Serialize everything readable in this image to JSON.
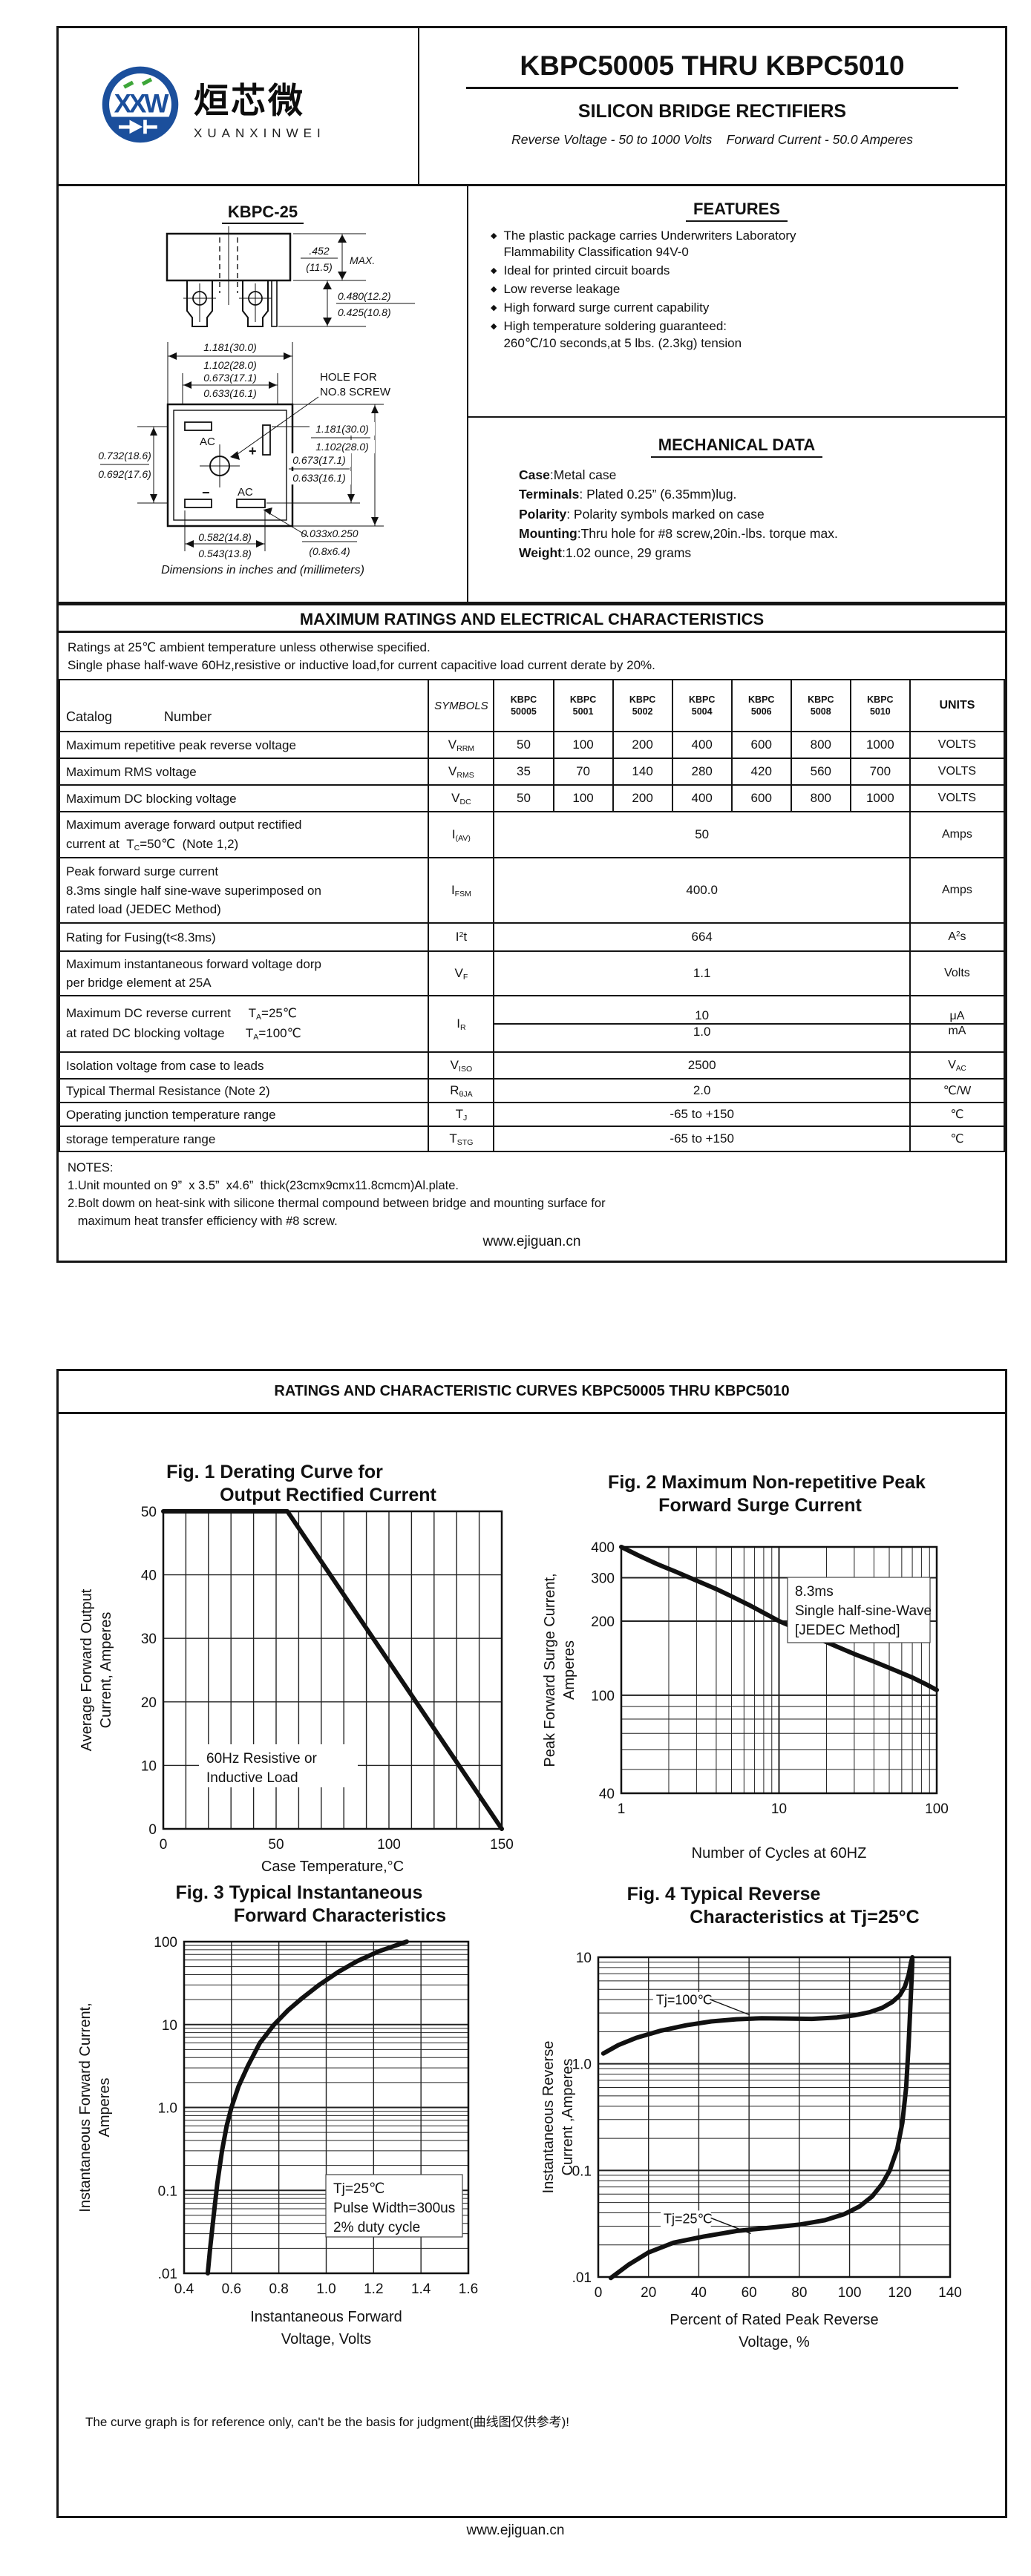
{
  "p1": {
    "logo": {
      "cn": "烜芯微",
      "en": "XUANXINWEI",
      "monogram": "XXW",
      "blue": "#1b4f9c",
      "green": "#3da639"
    },
    "title": "KBPC50005 THRU KBPC5010",
    "subtitle": "SILICON BRIDGE RECTIFIERS",
    "tagline": "Reverse Voltage - 50 to 1000 Volts    Forward Current - 50.0 Amperes",
    "pkg": {
      "name": "KBPC-25",
      "caption": "Dimensions in inches and (millimeters)",
      "dims": {
        "h1": ".452",
        "h2": "(11.5)",
        "hmax": "MAX.",
        "l1": "0.480(12.2)",
        "l2": "0.425(10.8)",
        "w1": "1.181(30.0)",
        "w2": "1.102(28.0)",
        "wi1": "0.673(17.1)",
        "wi2": "0.633(16.1)",
        "hole1": "HOLE FOR",
        "hole2": "NO.8 SCREW",
        "lv1": "0.732(18.6)",
        "lv2": "0.692(17.6)",
        "rv1": "1.181(30.0)",
        "rv2": "1.102(28.0)",
        "rv3": "0.673(17.1)",
        "rv4": "0.633(16.1)",
        "b1": "0.582(14.8)",
        "b2": "0.543(13.8)",
        "s1": "0.033x0.250",
        "s2": "(0.8x6.4)",
        "ac": "AC",
        "plus": "+",
        "minus": "−"
      }
    },
    "features": {
      "heading": "FEATURES",
      "items": [
        [
          "The plastic package carries Underwriters Laboratory",
          "Flammability Classification 94V-0"
        ],
        [
          "Ideal for printed circuit boards"
        ],
        [
          "Low reverse leakage"
        ],
        [
          "High forward surge current capability"
        ],
        [
          "High temperature soldering guaranteed:",
          "260℃/10 seconds,at 5 lbs. (2.3kg) tension"
        ]
      ]
    },
    "mech": {
      "heading": "MECHANICAL DATA",
      "rows": [
        {
          "b": "Case",
          "t": ":Metal case"
        },
        {
          "b": "Terminals",
          "t": ": Plated 0.25”  (6.35mm)lug."
        },
        {
          "b": "Polarity",
          "t": ": Polarity symbols marked on case"
        },
        {
          "b": "Mounting",
          "t": ":Thru hole for #8 screw,20in.-lbs. torque max."
        },
        {
          "b": "Weight",
          "t": ":1.02 ounce, 29 grams"
        }
      ]
    },
    "ratings": {
      "heading": "MAXIMUM RATINGS AND ELECTRICAL CHARACTERISTICS",
      "note1": "Ratings at 25℃ ambient temperature unless otherwise specified.",
      "note2": "Single phase half-wave 60Hz,resistive or inductive load,for current capacitive load current derate by 20%.",
      "table": {
        "catalog_label": "Catalog",
        "number_label": "Number",
        "symbols_label": "SYMBOLS",
        "units_label": "UNITS",
        "parts": [
          [
            "KBPC",
            "50005"
          ],
          [
            "KBPC",
            "5001"
          ],
          [
            "KBPC",
            "5002"
          ],
          [
            "KBPC",
            "5004"
          ],
          [
            "KBPC",
            "5006"
          ],
          [
            "KBPC",
            "5008"
          ],
          [
            "KBPC",
            "5010"
          ]
        ],
        "rows": [
          {
            "label": [
              "Maximum repetitive peak reverse voltage"
            ],
            "sym": "V_{RRM}",
            "values": [
              "50",
              "100",
              "200",
              "400",
              "600",
              "800",
              "1000"
            ],
            "units": "VOLTS"
          },
          {
            "label": [
              "Maximum RMS voltage"
            ],
            "sym": "V_{RMS}",
            "values": [
              "35",
              "70",
              "140",
              "280",
              "420",
              "560",
              "700"
            ],
            "units": "VOLTS"
          },
          {
            "label": [
              "Maximum DC blocking voltage"
            ],
            "sym": "V_{DC}",
            "values": [
              "50",
              "100",
              "200",
              "400",
              "600",
              "800",
              "1000"
            ],
            "units": "VOLTS"
          },
          {
            "label": [
              "Maximum average forward output rectified",
              "current at  T_{C}=50℃  (Note 1,2)"
            ],
            "sym": "I_{(AV)}",
            "span": "50",
            "units": "Amps"
          },
          {
            "label": [
              "Peak forward surge current",
              "8.3ms single half sine-wave superimposed on",
              "rated load (JEDEC Method)"
            ],
            "sym": "I_{FSM}",
            "span": "400.0",
            "units": "Amps"
          },
          {
            "label": [
              "Rating for Fusing(t<8.3ms)"
            ],
            "sym": "I^{2}t",
            "span": "664",
            "units": "A^{2}s"
          },
          {
            "label": [
              "Maximum instantaneous forward voltage dorp",
              "per bridge element at 25A"
            ],
            "sym": "V_{F}",
            "span": "1.1",
            "units": "Volts"
          },
          {
            "label": [
              "Maximum DC reverse current     T_{A}=25℃",
              "at rated DC blocking voltage      T_{A}=100℃"
            ],
            "sym": "I_{R}",
            "split": [
              "10",
              "1.0"
            ],
            "units_split": [
              "μA",
              "mA"
            ]
          },
          {
            "label": [
              "Isolation voltage from case to leads"
            ],
            "sym": "V_{ISO}",
            "span": "2500",
            "units": "V_{AC}"
          },
          {
            "label": [
              "Typical Thermal Resistance (Note 2)"
            ],
            "sym": "R_{θJA}",
            "span": "2.0",
            "units": "℃/W"
          },
          {
            "label": [
              "Operating junction temperature range"
            ],
            "sym": "T_{J}",
            "span": "-65 to +150",
            "units": "℃"
          },
          {
            "label": [
              "storage temperature range"
            ],
            "sym": "T_{STG}",
            "span": "-65 to +150",
            "units": "℃"
          }
        ]
      },
      "notes": [
        "NOTES:",
        "1.Unit mounted on 9”  x 3.5”  x4.6”  thick(23cmx9cmx11.8cmcm)Al.plate.",
        "2.Bolt dowm on heat-sink with silicone thermal compound between bridge and mounting surface for",
        "   maximum heat transfer efficiency with #8 screw."
      ]
    },
    "footer": "www.ejiguan.cn"
  },
  "p2": {
    "heading": "RATINGS AND CHARACTERISTIC CURVES KBPC50005 THRU KBPC5010",
    "disclaimer": "The curve graph is for reference only, can't be the basis for judgment(曲线图仅供参考)!",
    "footer": "www.ejiguan.cn"
  },
  "chart_data": [
    {
      "id": "fig1",
      "type": "line",
      "title": [
        "Fig. 1 Derating Curve for",
        "Output Rectified Current"
      ],
      "xlabel": "Case Temperature,°C",
      "ylabel": [
        "Average Forward Output",
        "Current, Amperes"
      ],
      "x": {
        "scale": "linear",
        "min": 0,
        "max": 150,
        "step": 10,
        "ticks": [
          [
            0,
            "0"
          ],
          [
            50,
            "50"
          ],
          [
            100,
            "100"
          ],
          [
            150,
            "150"
          ]
        ]
      },
      "y": {
        "scale": "linear",
        "min": 0,
        "max": 50,
        "step": 10,
        "ticks": [
          [
            0,
            "0"
          ],
          [
            10,
            "10"
          ],
          [
            20,
            "20"
          ],
          [
            30,
            "30"
          ],
          [
            40,
            "40"
          ],
          [
            50,
            "50"
          ]
        ]
      },
      "annotation": {
        "lines": [
          "60Hz Resistive or",
          "Inductive Load"
        ]
      },
      "series": [
        {
          "name": "derating",
          "points": [
            [
              0,
              50
            ],
            [
              55,
              50
            ],
            [
              150,
              0
            ]
          ]
        }
      ]
    },
    {
      "id": "fig2",
      "type": "line",
      "title": [
        "Fig. 2 Maximum Non-repetitive Peak",
        "Forward Surge Current"
      ],
      "xlabel": "Number of Cycles at 60HZ",
      "ylabel": [
        "Peak Forward Surge Current,",
        "Amperes"
      ],
      "x": {
        "scale": "log",
        "min": 1,
        "max": 100,
        "ticks": [
          [
            1,
            "1"
          ],
          [
            10,
            "10"
          ],
          [
            100,
            "100"
          ]
        ]
      },
      "y": {
        "scale": "log",
        "min": 40,
        "max": 400,
        "ticks": [
          [
            40,
            "40"
          ],
          [
            100,
            "100"
          ],
          [
            200,
            "200"
          ],
          [
            300,
            "300"
          ],
          [
            400,
            "400"
          ]
        ]
      },
      "annotation": {
        "lines": [
          "8.3ms",
          "Single half-sine-Wave",
          "[JEDEC Method]"
        ]
      },
      "series": [
        {
          "name": "surge",
          "points": [
            [
              1,
              400
            ],
            [
              1.3,
              368
            ],
            [
              1.7,
              340
            ],
            [
              2.2,
              318
            ],
            [
              3,
              292
            ],
            [
              4,
              270
            ],
            [
              5,
              252
            ],
            [
              6.5,
              232
            ],
            [
              8,
              216
            ],
            [
              10,
              200
            ],
            [
              13,
              186
            ],
            [
              17,
              172
            ],
            [
              22,
              160
            ],
            [
              30,
              147
            ],
            [
              40,
              137
            ],
            [
              55,
              126
            ],
            [
              70,
              118
            ],
            [
              85,
              111
            ],
            [
              100,
              105
            ]
          ]
        }
      ]
    },
    {
      "id": "fig3",
      "type": "line",
      "title": [
        "Fig. 3 Typical Instantaneous",
        "Forward Characteristics"
      ],
      "xlabel": [
        "Instantaneous Forward",
        "Voltage, Volts"
      ],
      "ylabel": [
        "Instantaneous Forward Current,",
        "Amperes"
      ],
      "x": {
        "scale": "linear",
        "min": 0.4,
        "max": 1.6,
        "step": 0.2,
        "ticks": [
          [
            0.4,
            "0.4"
          ],
          [
            0.6,
            "0.6"
          ],
          [
            0.8,
            "0.8"
          ],
          [
            1.0,
            "1.0"
          ],
          [
            1.2,
            "1.2"
          ],
          [
            1.4,
            "1.4"
          ],
          [
            1.6,
            "1.6"
          ]
        ]
      },
      "y": {
        "scale": "log",
        "min": 0.01,
        "max": 100,
        "ticks": [
          [
            0.01,
            ".01"
          ],
          [
            0.1,
            "0.1"
          ],
          [
            1,
            "1.0"
          ],
          [
            10,
            "10"
          ],
          [
            100,
            "100"
          ]
        ]
      },
      "annotation": {
        "lines": [
          "Tj=25℃",
          "Pulse Width=300us",
          "2% duty cycle"
        ]
      },
      "series": [
        {
          "name": "forward",
          "points": [
            [
              0.5,
              0.01
            ],
            [
              0.51,
              0.02
            ],
            [
              0.525,
              0.05
            ],
            [
              0.54,
              0.12
            ],
            [
              0.56,
              0.3
            ],
            [
              0.58,
              0.6
            ],
            [
              0.6,
              1.0
            ],
            [
              0.63,
              1.8
            ],
            [
              0.67,
              3.2
            ],
            [
              0.72,
              6
            ],
            [
              0.78,
              10
            ],
            [
              0.84,
              15
            ],
            [
              0.9,
              21
            ],
            [
              0.97,
              30
            ],
            [
              1.05,
              43
            ],
            [
              1.13,
              58
            ],
            [
              1.22,
              76
            ],
            [
              1.34,
              100
            ]
          ]
        }
      ]
    },
    {
      "id": "fig4",
      "type": "line",
      "title": [
        "Fig. 4 Typical Reverse",
        "Characteristics at Tj=25°C"
      ],
      "xlabel": [
        "Percent of Rated Peak Reverse",
        "Voltage, %"
      ],
      "ylabel": [
        "Instantaneous Reverse",
        "Current ,Amperes"
      ],
      "x": {
        "scale": "linear",
        "min": 0,
        "max": 140,
        "step": 20,
        "ticks": [
          [
            0,
            "0"
          ],
          [
            20,
            "20"
          ],
          [
            40,
            "40"
          ],
          [
            60,
            "60"
          ],
          [
            80,
            "80"
          ],
          [
            100,
            "100"
          ],
          [
            120,
            "120"
          ],
          [
            140,
            "140"
          ]
        ]
      },
      "y": {
        "scale": "log",
        "min": 0.01,
        "max": 10,
        "ticks": [
          [
            0.01,
            ".01"
          ],
          [
            0.1,
            "0.1"
          ],
          [
            1,
            "1.0"
          ],
          [
            10,
            "10"
          ]
        ]
      },
      "series": [
        {
          "name": "Tj=100℃",
          "label_pos": [
            23,
            3.6
          ],
          "points": [
            [
              2,
              1.25
            ],
            [
              8,
              1.5
            ],
            [
              15,
              1.75
            ],
            [
              25,
              2.05
            ],
            [
              35,
              2.3
            ],
            [
              45,
              2.5
            ],
            [
              55,
              2.62
            ],
            [
              65,
              2.68
            ],
            [
              75,
              2.66
            ],
            [
              85,
              2.64
            ],
            [
              95,
              2.72
            ],
            [
              102,
              2.85
            ],
            [
              108,
              3.05
            ],
            [
              113,
              3.35
            ],
            [
              117,
              3.8
            ],
            [
              120,
              4.4
            ],
            [
              122,
              5.3
            ],
            [
              123.5,
              6.8
            ],
            [
              124.5,
              9
            ],
            [
              125,
              10
            ]
          ]
        },
        {
          "name": "Tj=25℃",
          "label_pos": [
            26,
            0.032
          ],
          "points": [
            [
              5,
              0.0098
            ],
            [
              12,
              0.013
            ],
            [
              20,
              0.017
            ],
            [
              30,
              0.021
            ],
            [
              42,
              0.024
            ],
            [
              55,
              0.027
            ],
            [
              68,
              0.029
            ],
            [
              80,
              0.031
            ],
            [
              90,
              0.034
            ],
            [
              98,
              0.039
            ],
            [
              104,
              0.046
            ],
            [
              109,
              0.057
            ],
            [
              113,
              0.075
            ],
            [
              116,
              0.1
            ],
            [
              119,
              0.16
            ],
            [
              121,
              0.28
            ],
            [
              122.5,
              0.6
            ],
            [
              123.5,
              1.5
            ],
            [
              124.2,
              3.5
            ],
            [
              124.8,
              7
            ],
            [
              125,
              9.5
            ]
          ]
        }
      ]
    }
  ]
}
